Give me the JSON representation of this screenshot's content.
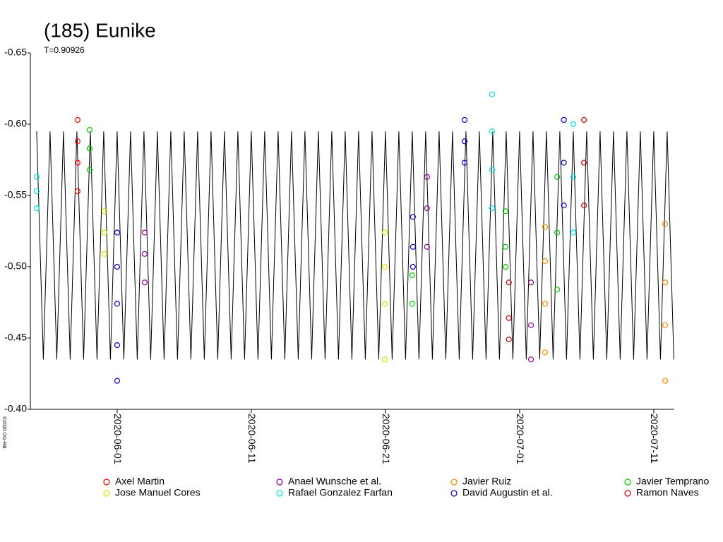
{
  "chart_data": {
    "type": "scatter",
    "title": "(185) Eunike",
    "subtitle": "T=0.90926",
    "copyright": "©2020 OG-RB",
    "ylim": [
      -0.65,
      -0.4
    ],
    "yinvert": false,
    "yticks": [
      -0.65,
      {
        "value": -0.6,
        "label": "-0.60"
      },
      -0.55,
      {
        "value": -0.5,
        "label": "-0.50"
      },
      -0.45,
      {
        "value": -0.4,
        "label": "-0.40"
      }
    ],
    "xlim": [
      -6.47,
      41.53
    ],
    "xticks": [
      {
        "value": 0,
        "label": "2020-06-01"
      },
      {
        "value": 10,
        "label": "2020-06-11"
      },
      {
        "value": 20,
        "label": "2020-06-21"
      },
      {
        "value": 30,
        "label": "2020-07-01"
      },
      {
        "value": 40,
        "label": "2020-07-11"
      }
    ],
    "model": {
      "color": "#000000",
      "x": [
        -6,
        -5.5,
        -5,
        -4.5,
        -4,
        -3.5,
        -3,
        -2.5,
        -2,
        -1.5,
        -1,
        -0.5,
        0,
        0.5,
        1,
        1.5,
        2,
        2.5,
        3,
        3.5,
        4,
        4.5,
        5,
        5.5,
        6,
        6.5,
        7,
        7.5,
        8,
        8.5,
        9,
        9.5,
        10,
        10.5,
        11,
        11.5,
        12,
        12.5,
        13,
        13.5,
        14,
        14.5,
        15,
        15.5,
        16,
        16.5,
        17,
        17.5,
        18,
        18.5,
        19,
        19.5,
        20,
        20.5,
        21,
        21.5,
        22,
        22.5,
        23,
        23.5,
        24,
        24.5,
        25,
        25.5,
        26,
        26.5,
        27,
        27.5,
        28,
        28.5,
        29,
        29.5,
        30,
        30.5,
        31,
        31.5,
        32,
        32.5,
        33,
        33.5,
        34,
        34.5,
        35,
        35.5,
        36,
        36.5,
        37,
        37.5,
        38,
        38.5,
        39,
        39.5,
        40,
        40.5,
        41,
        41.5
      ],
      "values": [
        -0.595,
        -0.435,
        -0.595,
        -0.435,
        -0.595,
        -0.435,
        -0.595,
        -0.435,
        -0.595,
        -0.435,
        -0.595,
        -0.435,
        -0.595,
        -0.435,
        -0.595,
        -0.435,
        -0.595,
        -0.435,
        -0.595,
        -0.435,
        -0.595,
        -0.435,
        -0.595,
        -0.435,
        -0.595,
        -0.435,
        -0.595,
        -0.435,
        -0.595,
        -0.435,
        -0.595,
        -0.435,
        -0.595,
        -0.435,
        -0.595,
        -0.435,
        -0.595,
        -0.435,
        -0.595,
        -0.435,
        -0.595,
        -0.435,
        -0.595,
        -0.435,
        -0.595,
        -0.435,
        -0.595,
        -0.435,
        -0.595,
        -0.435,
        -0.595,
        -0.435,
        -0.595,
        -0.435,
        -0.595,
        -0.435,
        -0.595,
        -0.435,
        -0.595,
        -0.435,
        -0.595,
        -0.435,
        -0.595,
        -0.435,
        -0.595,
        -0.435,
        -0.595,
        -0.435,
        -0.595,
        -0.435,
        -0.595,
        -0.435,
        -0.595,
        -0.435,
        -0.595,
        -0.435,
        -0.595,
        -0.435,
        -0.595,
        -0.435,
        -0.595,
        -0.435,
        -0.595,
        -0.435,
        -0.595,
        -0.435,
        -0.595,
        -0.435,
        -0.595,
        -0.435,
        -0.595,
        -0.435,
        -0.595,
        -0.435,
        -0.595,
        -0.435
      ]
    },
    "series": [
      {
        "name": "Axel Martin",
        "color": "#ff0000",
        "x": [
          -6.0,
          -6.0,
          -6.0,
          -2.95,
          -2.95,
          -2.95,
          -2.95,
          -2.05,
          -2.05,
          -2.05
        ],
        "values": [
          -0.563,
          -0.553,
          -0.541,
          -0.603,
          -0.588,
          -0.573,
          -0.553,
          -0.596,
          -0.583,
          -0.568
        ],
        "colors": [
          "#00e0e0",
          "#00e0e0",
          "#00e0e0",
          "#ff0000",
          "#ff0000",
          "#ff0000",
          "#ff0000",
          "#00cc00",
          "#00cc00",
          "#00cc00"
        ]
      },
      {
        "name": "Jose Manuel Cores",
        "color": "#e0e000",
        "x": [
          -0.95,
          -0.95,
          -0.95,
          0,
          0,
          0,
          0,
          0,
          19.95,
          19.95,
          19.95,
          19.95
        ],
        "values": [
          -0.539,
          -0.524,
          -0.509,
          -0.524,
          -0.5,
          -0.474,
          -0.445,
          -0.42,
          -0.524,
          -0.5,
          -0.474,
          -0.435
        ],
        "colors": [
          "#e0e000",
          "#e0e000",
          "#e0e000",
          "#0000cc",
          "#0000cc",
          "#0000cc",
          "#0000cc",
          "#0000cc",
          "#e0e000",
          "#e0e000",
          "#e0e000",
          "#e0e000"
        ]
      },
      {
        "name": "Anael Wunsche et al.",
        "color": "#990099",
        "x": [
          2.05,
          2.05,
          2.05,
          23.1,
          23.1,
          23.1,
          30.85,
          30.85,
          30.85
        ],
        "values": [
          -0.524,
          -0.509,
          -0.489,
          -0.563,
          -0.541,
          -0.514,
          -0.489,
          -0.459,
          -0.435
        ]
      },
      {
        "name": "Rafael Gonzalez Farfan",
        "color": "#00e0e0",
        "x": [
          27.95,
          27.95,
          27.95,
          27.95,
          34.0,
          34.0,
          34.0
        ],
        "values": [
          -0.621,
          -0.595,
          -0.568,
          -0.541,
          -0.6,
          -0.563,
          -0.524
        ]
      },
      {
        "name": "Javier Ruiz",
        "color": "#ff8800",
        "x": [
          31.9,
          31.9,
          31.9,
          31.9,
          40.85,
          40.85,
          40.85,
          40.85
        ],
        "values": [
          -0.528,
          -0.504,
          -0.474,
          -0.44,
          -0.53,
          -0.489,
          -0.459,
          -0.42
        ]
      },
      {
        "name": "David Augustin et al.",
        "color": "#0000cc",
        "x": [
          22.05,
          22.05,
          22.05,
          25.9,
          25.9,
          25.9,
          33.3,
          33.3,
          33.3
        ],
        "values": [
          -0.535,
          -0.514,
          -0.5,
          -0.603,
          -0.588,
          -0.573,
          -0.603,
          -0.573,
          -0.543
        ]
      },
      {
        "name": "Javier Temprano",
        "color": "#00cc00",
        "x": [
          22.0,
          22.0,
          28.95,
          28.95,
          28.95,
          32.8,
          32.8,
          32.8
        ],
        "values": [
          -0.494,
          -0.474,
          -0.539,
          -0.514,
          -0.5,
          -0.563,
          -0.524,
          -0.484
        ]
      },
      {
        "name": "Ramon Naves",
        "color": "#cc0000",
        "x": [
          29.2,
          29.2,
          29.2,
          34.8,
          34.8,
          34.8
        ],
        "values": [
          -0.489,
          -0.464,
          -0.449,
          -0.603,
          -0.573,
          -0.543
        ]
      }
    ]
  }
}
